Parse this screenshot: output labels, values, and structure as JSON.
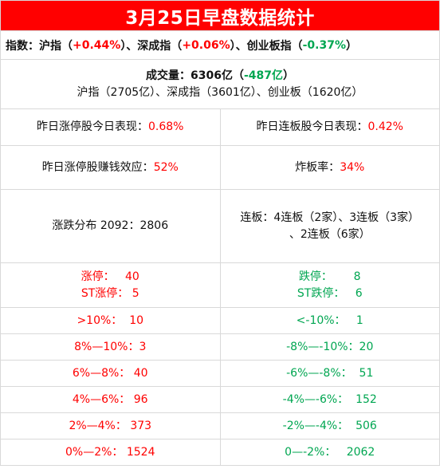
{
  "title": "3月25日早盘数据统计",
  "indices": {
    "label": "指数：",
    "sh_name": "沪指（",
    "sh_value": "+0.44%",
    "sh_close": "）、深成指（",
    "sz_value": "+0.06%",
    "sz_close": "）、创业板指（",
    "cy_value": "-0.37%",
    "cy_close": "）"
  },
  "volume": {
    "label": "成交量：6306亿（",
    "change": "-487亿",
    "close": "）",
    "breakdown": "沪指（2705亿）、深成指（3601亿）、创业板（1620亿）"
  },
  "performance": {
    "limitup_label": "昨日涨停股今日表现：",
    "limitup_value": "0.68%",
    "consecutive_label": "昨日连板股今日表现：",
    "consecutive_value": "0.42%"
  },
  "effect": {
    "profit_label": "昨日涨停股赚钱效应：",
    "profit_value": "52%",
    "broken_label": "炸板率：",
    "broken_value": "34%"
  },
  "distribution": {
    "updown": "涨跌分布 2092：2806",
    "streak_line1": "连板：4连板（2家）、3连板（3家）",
    "streak_line2": "、2连板（6家）"
  },
  "limits": {
    "up_label": "涨停：",
    "up_value": "40",
    "st_up_label": "ST涨停：",
    "st_up_value": "5",
    "down_label": "跌停：",
    "down_value": "8",
    "st_down_label": "ST跌停：",
    "st_down_value": "6"
  },
  "ranges": [
    {
      "up_label": ">10%：",
      "up_value": "10",
      "down_label": "<-10%：",
      "down_value": "1"
    },
    {
      "up_label": "8%—10%：",
      "up_value": "3",
      "down_label": "-8%—-10%：",
      "down_value": "20"
    },
    {
      "up_label": "6%—8%：",
      "up_value": "40",
      "down_label": "-6%—-8%：",
      "down_value": "51"
    },
    {
      "up_label": "4%—6%：",
      "up_value": "96",
      "down_label": "-4%—-6%：",
      "down_value": "152"
    },
    {
      "up_label": "2%—4%：",
      "up_value": "373",
      "down_label": "-2%—-4%：",
      "down_value": "506"
    },
    {
      "up_label": "0%—2%：",
      "up_value": "1524",
      "down_label": "0—-2%：",
      "down_value": "2062"
    }
  ],
  "colors": {
    "up": "#ff0000",
    "down": "#00a651",
    "title_bg": "#ff0000"
  }
}
